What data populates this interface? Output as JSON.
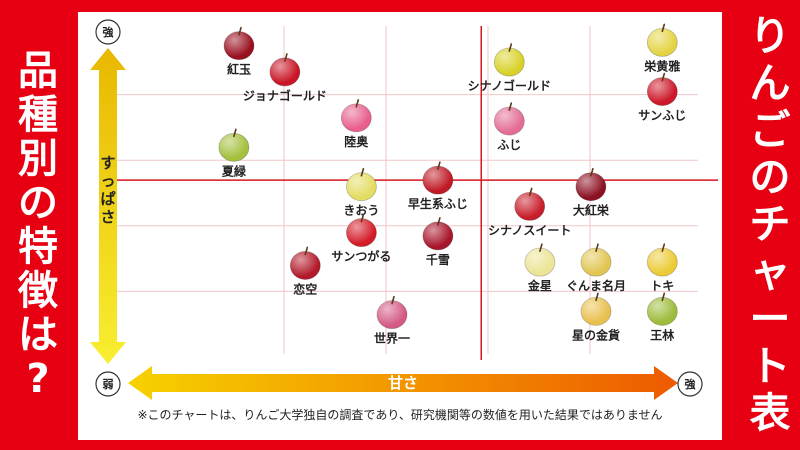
{
  "left_title": "品種別の特徴は?",
  "right_title": "りんごのチャート表",
  "chart_data": {
    "type": "scatter",
    "title": "りんごのチャート表",
    "xlabel": "甘さ",
    "ylabel": "すっぱさ",
    "x_low_label": "弱",
    "x_high_label": "強",
    "y_high_label": "強",
    "xlim": [
      0,
      10
    ],
    "ylim": [
      0,
      10
    ],
    "grid": true,
    "points": [
      {
        "name": "紅玉",
        "x": 1.0,
        "y": 9.4,
        "color": "#9a1020"
      },
      {
        "name": "ジョナゴールド",
        "x": 1.9,
        "y": 8.6,
        "color": "#c91525"
      },
      {
        "name": "陸奥",
        "x": 3.3,
        "y": 7.2,
        "color": "#e85e8d"
      },
      {
        "name": "夏緑",
        "x": 0.9,
        "y": 6.3,
        "color": "#a4c03c"
      },
      {
        "name": "きおう",
        "x": 3.4,
        "y": 5.1,
        "color": "#e3dc62"
      },
      {
        "name": "早生系ふじ",
        "x": 4.9,
        "y": 5.3,
        "color": "#c01a26"
      },
      {
        "name": "サンつがる",
        "x": 3.4,
        "y": 3.7,
        "color": "#d41c28"
      },
      {
        "name": "千雪",
        "x": 4.9,
        "y": 3.6,
        "color": "#a8142a"
      },
      {
        "name": "恋空",
        "x": 2.3,
        "y": 2.7,
        "color": "#b3192a"
      },
      {
        "name": "世界一",
        "x": 4.0,
        "y": 1.2,
        "color": "#d45a86"
      },
      {
        "name": "シナノゴールド",
        "x": 6.3,
        "y": 8.9,
        "color": "#d8d228"
      },
      {
        "name": "ふじ",
        "x": 6.3,
        "y": 7.1,
        "color": "#e46c96"
      },
      {
        "name": "シナノスイート",
        "x": 6.7,
        "y": 4.5,
        "color": "#c81d2a"
      },
      {
        "name": "大紅栄",
        "x": 7.9,
        "y": 5.1,
        "color": "#8c1122"
      },
      {
        "name": "金星",
        "x": 6.9,
        "y": 2.8,
        "color": "#ece496"
      },
      {
        "name": "ぐんま名月",
        "x": 8.0,
        "y": 2.8,
        "color": "#e2c652"
      },
      {
        "name": "星の金貨",
        "x": 8.0,
        "y": 1.3,
        "color": "#e9c04e"
      },
      {
        "name": "栄黄雅",
        "x": 9.3,
        "y": 9.5,
        "color": "#e4d444"
      },
      {
        "name": "サンふじ",
        "x": 9.3,
        "y": 8.0,
        "color": "#cc1828"
      },
      {
        "name": "トキ",
        "x": 9.3,
        "y": 2.8,
        "color": "#eccb36"
      },
      {
        "name": "王林",
        "x": 9.3,
        "y": 1.3,
        "color": "#9cbc3a"
      }
    ]
  },
  "footnote": "※このチャートは、りんご大学独自の調査であり、研究機関等の数値を用いた結果ではありません"
}
